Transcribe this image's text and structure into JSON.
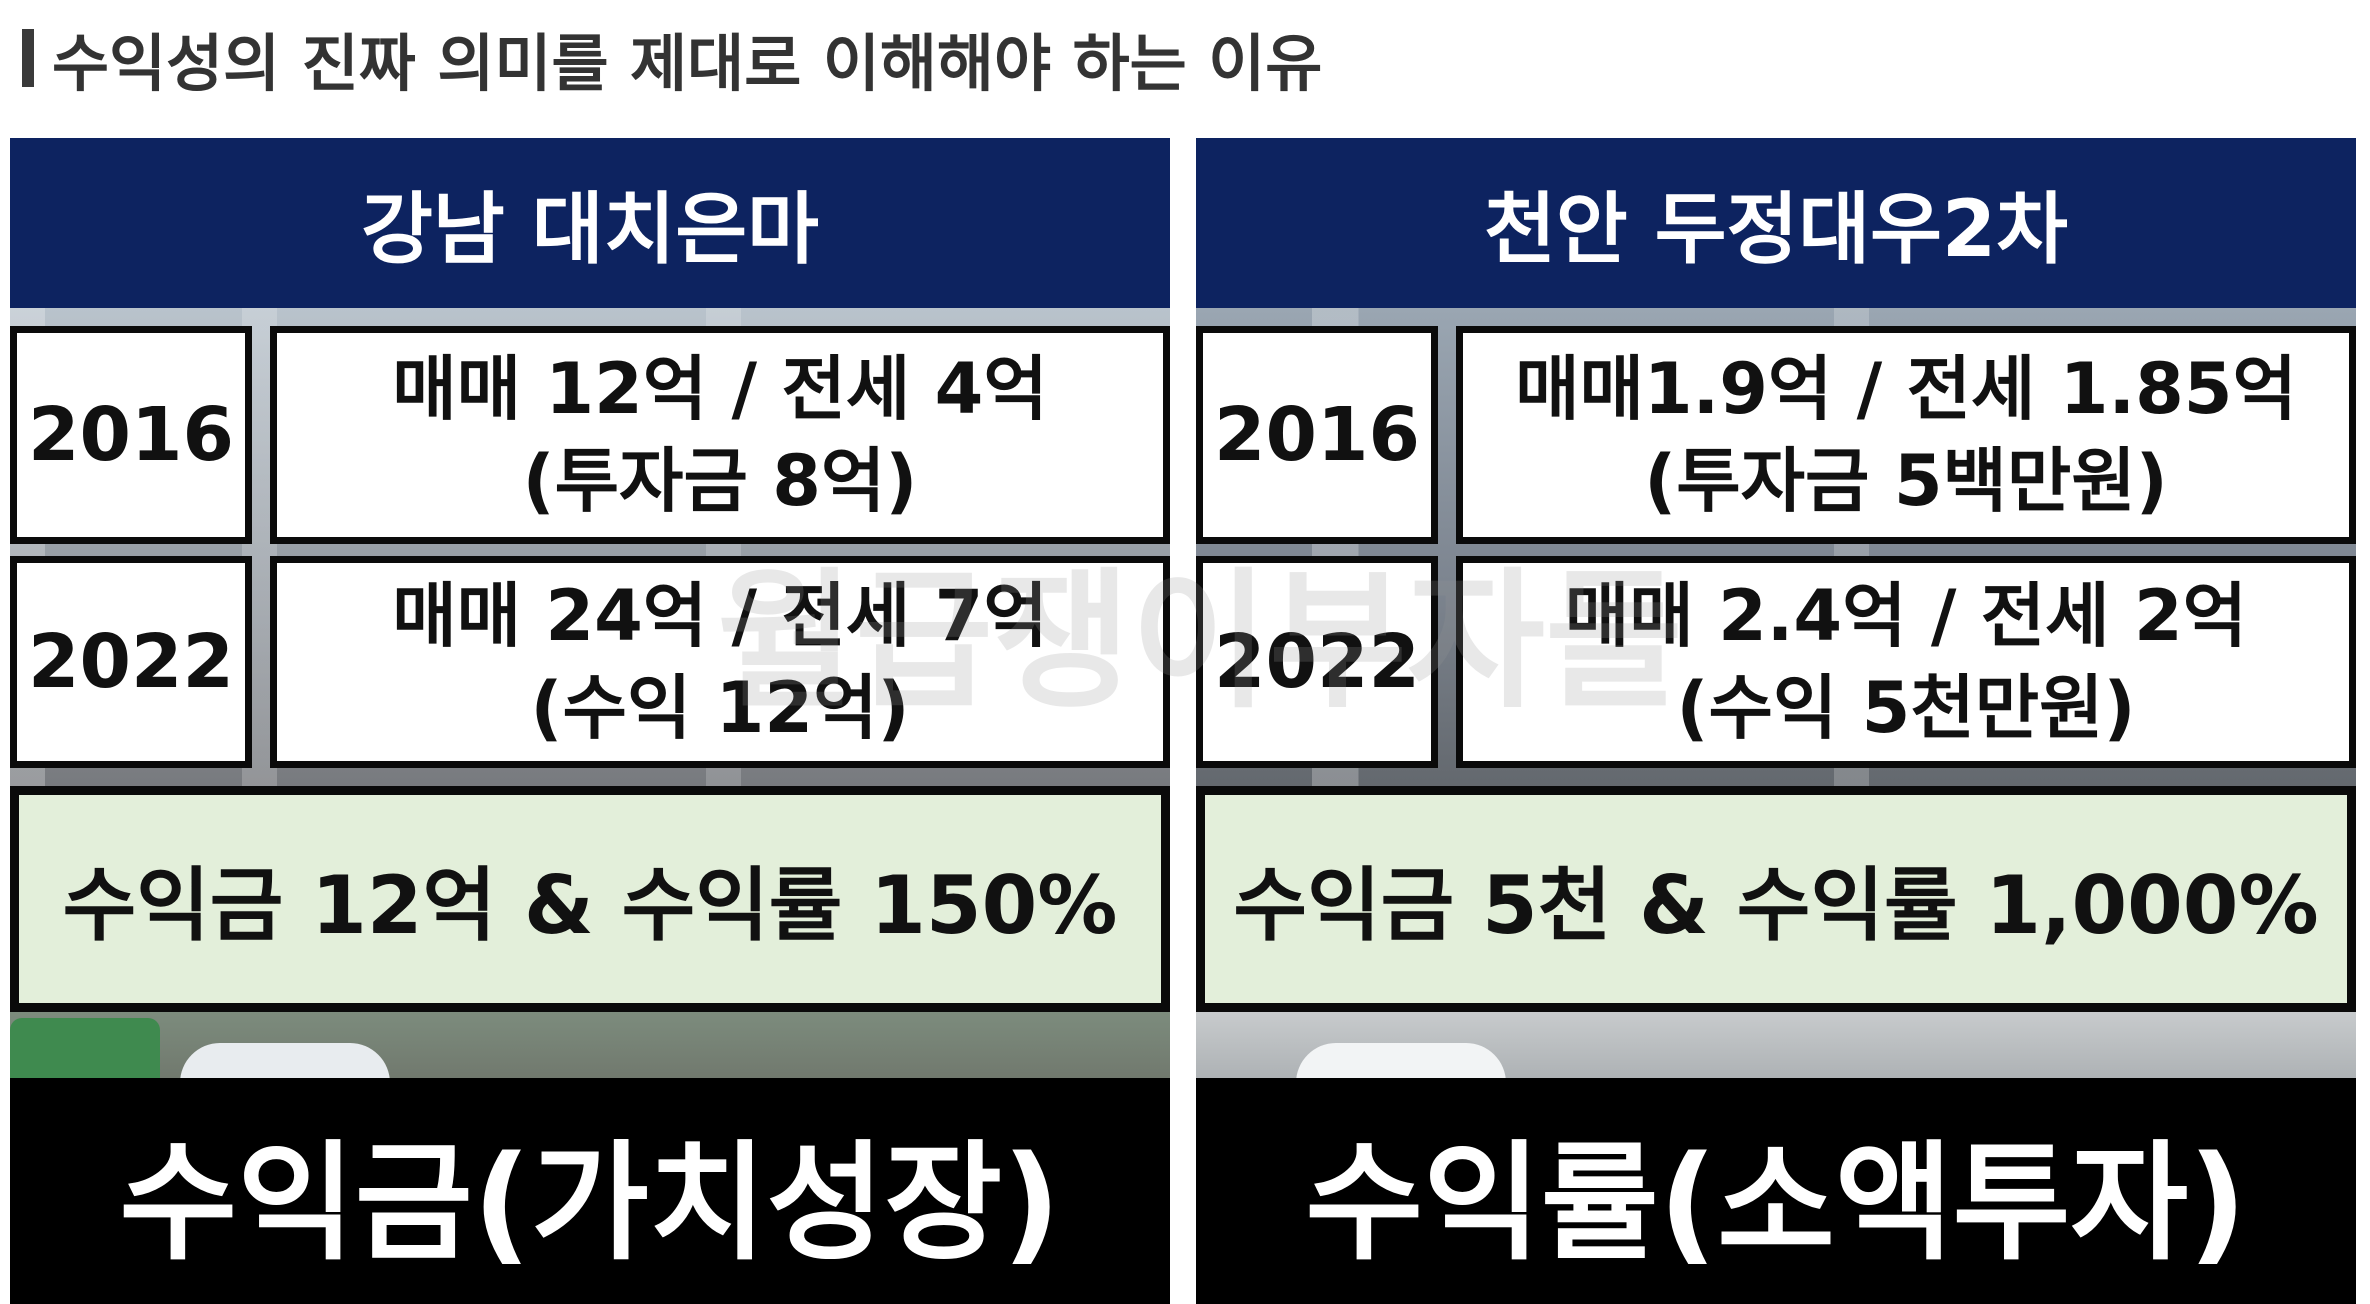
{
  "title": "수익성의 진짜 의미를 제대로 이해해야 하는 이유",
  "watermark": "월급쟁이부자들",
  "left": {
    "header": "강남 대치은마",
    "row2016": {
      "year": "2016",
      "line1": "매매 12억 / 전세 4억",
      "line2": "(투자금 8억)"
    },
    "row2022": {
      "year": "2022",
      "line1": "매매 24억 / 전세 7억",
      "line2": "(수익 12억)"
    },
    "summary": "수익금 12억 & 수익률 150%",
    "bottom": "수익금(가치성장)"
  },
  "right": {
    "header": "천안 두정대우2차",
    "row2016": {
      "year": "2016",
      "line1": "매매1.9억 / 전세 1.85억",
      "line2": "(투자금 5백만원)"
    },
    "row2022": {
      "year": "2022",
      "line1": "매매 2.4억 / 전세 2억",
      "line2": "(수익 5천만원)"
    },
    "summary": "수익금 5천 & 수익률 1,000%",
    "bottom": "수익률(소액투자)"
  }
}
